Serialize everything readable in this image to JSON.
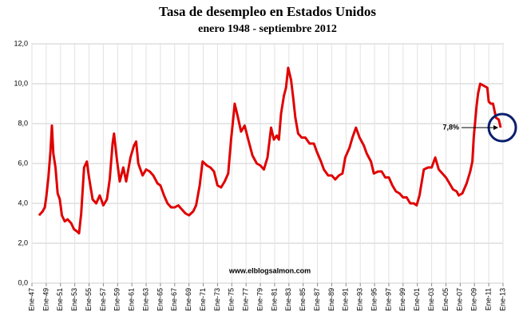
{
  "chart_data": {
    "type": "line",
    "title": "Tasa de desempleo en Estados Unidos",
    "subtitle": "enero 1948 - septiembre 2012",
    "annotation": "7,8%",
    "source": "www.elblogsalmon.com",
    "color": "#e00000",
    "grid": true,
    "xlim": [
      1947,
      2013
    ],
    "ylim": [
      0,
      12
    ],
    "yticks": [
      {
        "value": 0,
        "label": "0,0"
      },
      {
        "value": 2,
        "label": "2,0"
      },
      {
        "value": 4,
        "label": "4,0"
      },
      {
        "value": 6,
        "label": "6,0"
      },
      {
        "value": 8,
        "label": "8,0"
      },
      {
        "value": 10,
        "label": "10,0"
      },
      {
        "value": 12,
        "label": "12,0"
      }
    ],
    "xticks": [
      {
        "value": 1947,
        "label": "Ene-47"
      },
      {
        "value": 1949,
        "label": "Ene-49"
      },
      {
        "value": 1951,
        "label": "Ene-51"
      },
      {
        "value": 1953,
        "label": "Ene-53"
      },
      {
        "value": 1955,
        "label": "Ene-55"
      },
      {
        "value": 1957,
        "label": "Ene-57"
      },
      {
        "value": 1959,
        "label": "Ene-59"
      },
      {
        "value": 1961,
        "label": "Ene-61"
      },
      {
        "value": 1963,
        "label": "Ene-63"
      },
      {
        "value": 1965,
        "label": "Ene-65"
      },
      {
        "value": 1967,
        "label": "Ene-67"
      },
      {
        "value": 1969,
        "label": "Ene-69"
      },
      {
        "value": 1971,
        "label": "Ene-71"
      },
      {
        "value": 1973,
        "label": "Ene-73"
      },
      {
        "value": 1975,
        "label": "Ene-75"
      },
      {
        "value": 1977,
        "label": "Ene-77"
      },
      {
        "value": 1979,
        "label": "Ene-79"
      },
      {
        "value": 1981,
        "label": "Ene-81"
      },
      {
        "value": 1983,
        "label": "Ene-83"
      },
      {
        "value": 1985,
        "label": "Ene-85"
      },
      {
        "value": 1987,
        "label": "Ene-87"
      },
      {
        "value": 1989,
        "label": "Ene-89"
      },
      {
        "value": 1991,
        "label": "Ene-91"
      },
      {
        "value": 1993,
        "label": "Ene-93"
      },
      {
        "value": 1995,
        "label": "Ene-95"
      },
      {
        "value": 1997,
        "label": "Ene-97"
      },
      {
        "value": 1999,
        "label": "Ene-99"
      },
      {
        "value": 2001,
        "label": "Ene-01"
      },
      {
        "value": 2003,
        "label": "Ene-03"
      },
      {
        "value": 2005,
        "label": "Ene-05"
      },
      {
        "value": 2007,
        "label": "Ene-07"
      },
      {
        "value": 2009,
        "label": "Ene-09"
      },
      {
        "value": 2011,
        "label": "Ene-11"
      },
      {
        "value": 2013,
        "label": "Ene-13"
      }
    ],
    "x": [
      1948.0,
      1948.5,
      1948.8,
      1949.0,
      1949.3,
      1949.6,
      1949.8,
      1950.0,
      1950.3,
      1950.6,
      1950.9,
      1951.2,
      1951.6,
      1952.0,
      1952.5,
      1952.9,
      1953.3,
      1953.6,
      1953.9,
      1954.3,
      1954.7,
      1955.0,
      1955.5,
      1956.0,
      1956.5,
      1957.0,
      1957.5,
      1957.9,
      1958.3,
      1958.5,
      1958.9,
      1959.3,
      1959.8,
      1960.2,
      1960.8,
      1961.3,
      1961.6,
      1961.9,
      1962.5,
      1963.0,
      1963.5,
      1964.0,
      1964.6,
      1965.0,
      1965.5,
      1966.0,
      1966.5,
      1967.0,
      1967.5,
      1968.0,
      1968.5,
      1969.0,
      1969.6,
      1970.0,
      1970.5,
      1970.9,
      1971.5,
      1972.0,
      1972.5,
      1973.0,
      1973.5,
      1974.0,
      1974.5,
      1974.9,
      1975.3,
      1975.4,
      1975.8,
      1976.3,
      1976.8,
      1977.3,
      1977.9,
      1978.5,
      1979.0,
      1979.5,
      1980.0,
      1980.5,
      1980.9,
      1981.3,
      1981.6,
      1981.9,
      1982.3,
      1982.6,
      1982.9,
      1983.3,
      1983.6,
      1983.9,
      1984.3,
      1984.8,
      1985.3,
      1985.9,
      1986.5,
      1986.9,
      1987.5,
      1987.9,
      1988.5,
      1989.0,
      1989.5,
      1990.0,
      1990.5,
      1990.9,
      1991.5,
      1991.9,
      1992.4,
      1992.9,
      1993.5,
      1993.9,
      1994.5,
      1994.9,
      1995.5,
      1996.0,
      1996.5,
      1997.0,
      1997.5,
      1998.0,
      1998.5,
      1999.0,
      1999.5,
      2000.0,
      2000.5,
      2000.9,
      2001.3,
      2001.9,
      2002.5,
      2003.0,
      2003.5,
      2004.0,
      2004.5,
      2005.0,
      2005.5,
      2006.0,
      2006.5,
      2006.8,
      2007.3,
      2007.9,
      2008.4,
      2008.7,
      2008.9,
      2009.3,
      2009.5,
      2009.8,
      2010.3,
      2010.8,
      2011.0,
      2011.3,
      2011.6,
      2012.0,
      2012.4,
      2012.67
    ],
    "values": [
      3.4,
      3.6,
      3.8,
      4.3,
      5.3,
      6.6,
      7.9,
      6.5,
      5.8,
      4.5,
      4.2,
      3.4,
      3.1,
      3.2,
      3.0,
      2.7,
      2.6,
      2.5,
      3.5,
      5.8,
      6.1,
      5.3,
      4.2,
      4.0,
      4.4,
      3.9,
      4.2,
      5.2,
      7.0,
      7.5,
      6.2,
      5.1,
      5.8,
      5.1,
      6.3,
      6.9,
      7.1,
      6.0,
      5.4,
      5.7,
      5.6,
      5.4,
      5.0,
      4.9,
      4.4,
      4.0,
      3.8,
      3.8,
      3.9,
      3.7,
      3.5,
      3.4,
      3.6,
      3.9,
      4.9,
      6.1,
      5.9,
      5.8,
      5.6,
      4.9,
      4.8,
      5.1,
      5.5,
      7.2,
      8.6,
      9.0,
      8.4,
      7.6,
      7.9,
      7.2,
      6.4,
      6.0,
      5.9,
      5.7,
      6.3,
      7.8,
      7.2,
      7.4,
      7.2,
      8.5,
      9.4,
      9.8,
      10.8,
      10.2,
      9.3,
      8.3,
      7.5,
      7.3,
      7.3,
      7.0,
      7.0,
      6.6,
      6.1,
      5.7,
      5.4,
      5.4,
      5.2,
      5.4,
      5.5,
      6.3,
      6.8,
      7.3,
      7.8,
      7.3,
      6.9,
      6.5,
      6.1,
      5.5,
      5.6,
      5.6,
      5.3,
      5.3,
      4.9,
      4.6,
      4.5,
      4.3,
      4.3,
      4.0,
      4.0,
      3.9,
      4.4,
      5.7,
      5.8,
      5.8,
      6.3,
      5.7,
      5.5,
      5.3,
      5.0,
      4.7,
      4.6,
      4.4,
      4.5,
      5.0,
      5.6,
      6.1,
      7.3,
      8.9,
      9.5,
      10.0,
      9.9,
      9.8,
      9.1,
      9.0,
      9.0,
      8.3,
      8.2,
      7.8
    ]
  }
}
